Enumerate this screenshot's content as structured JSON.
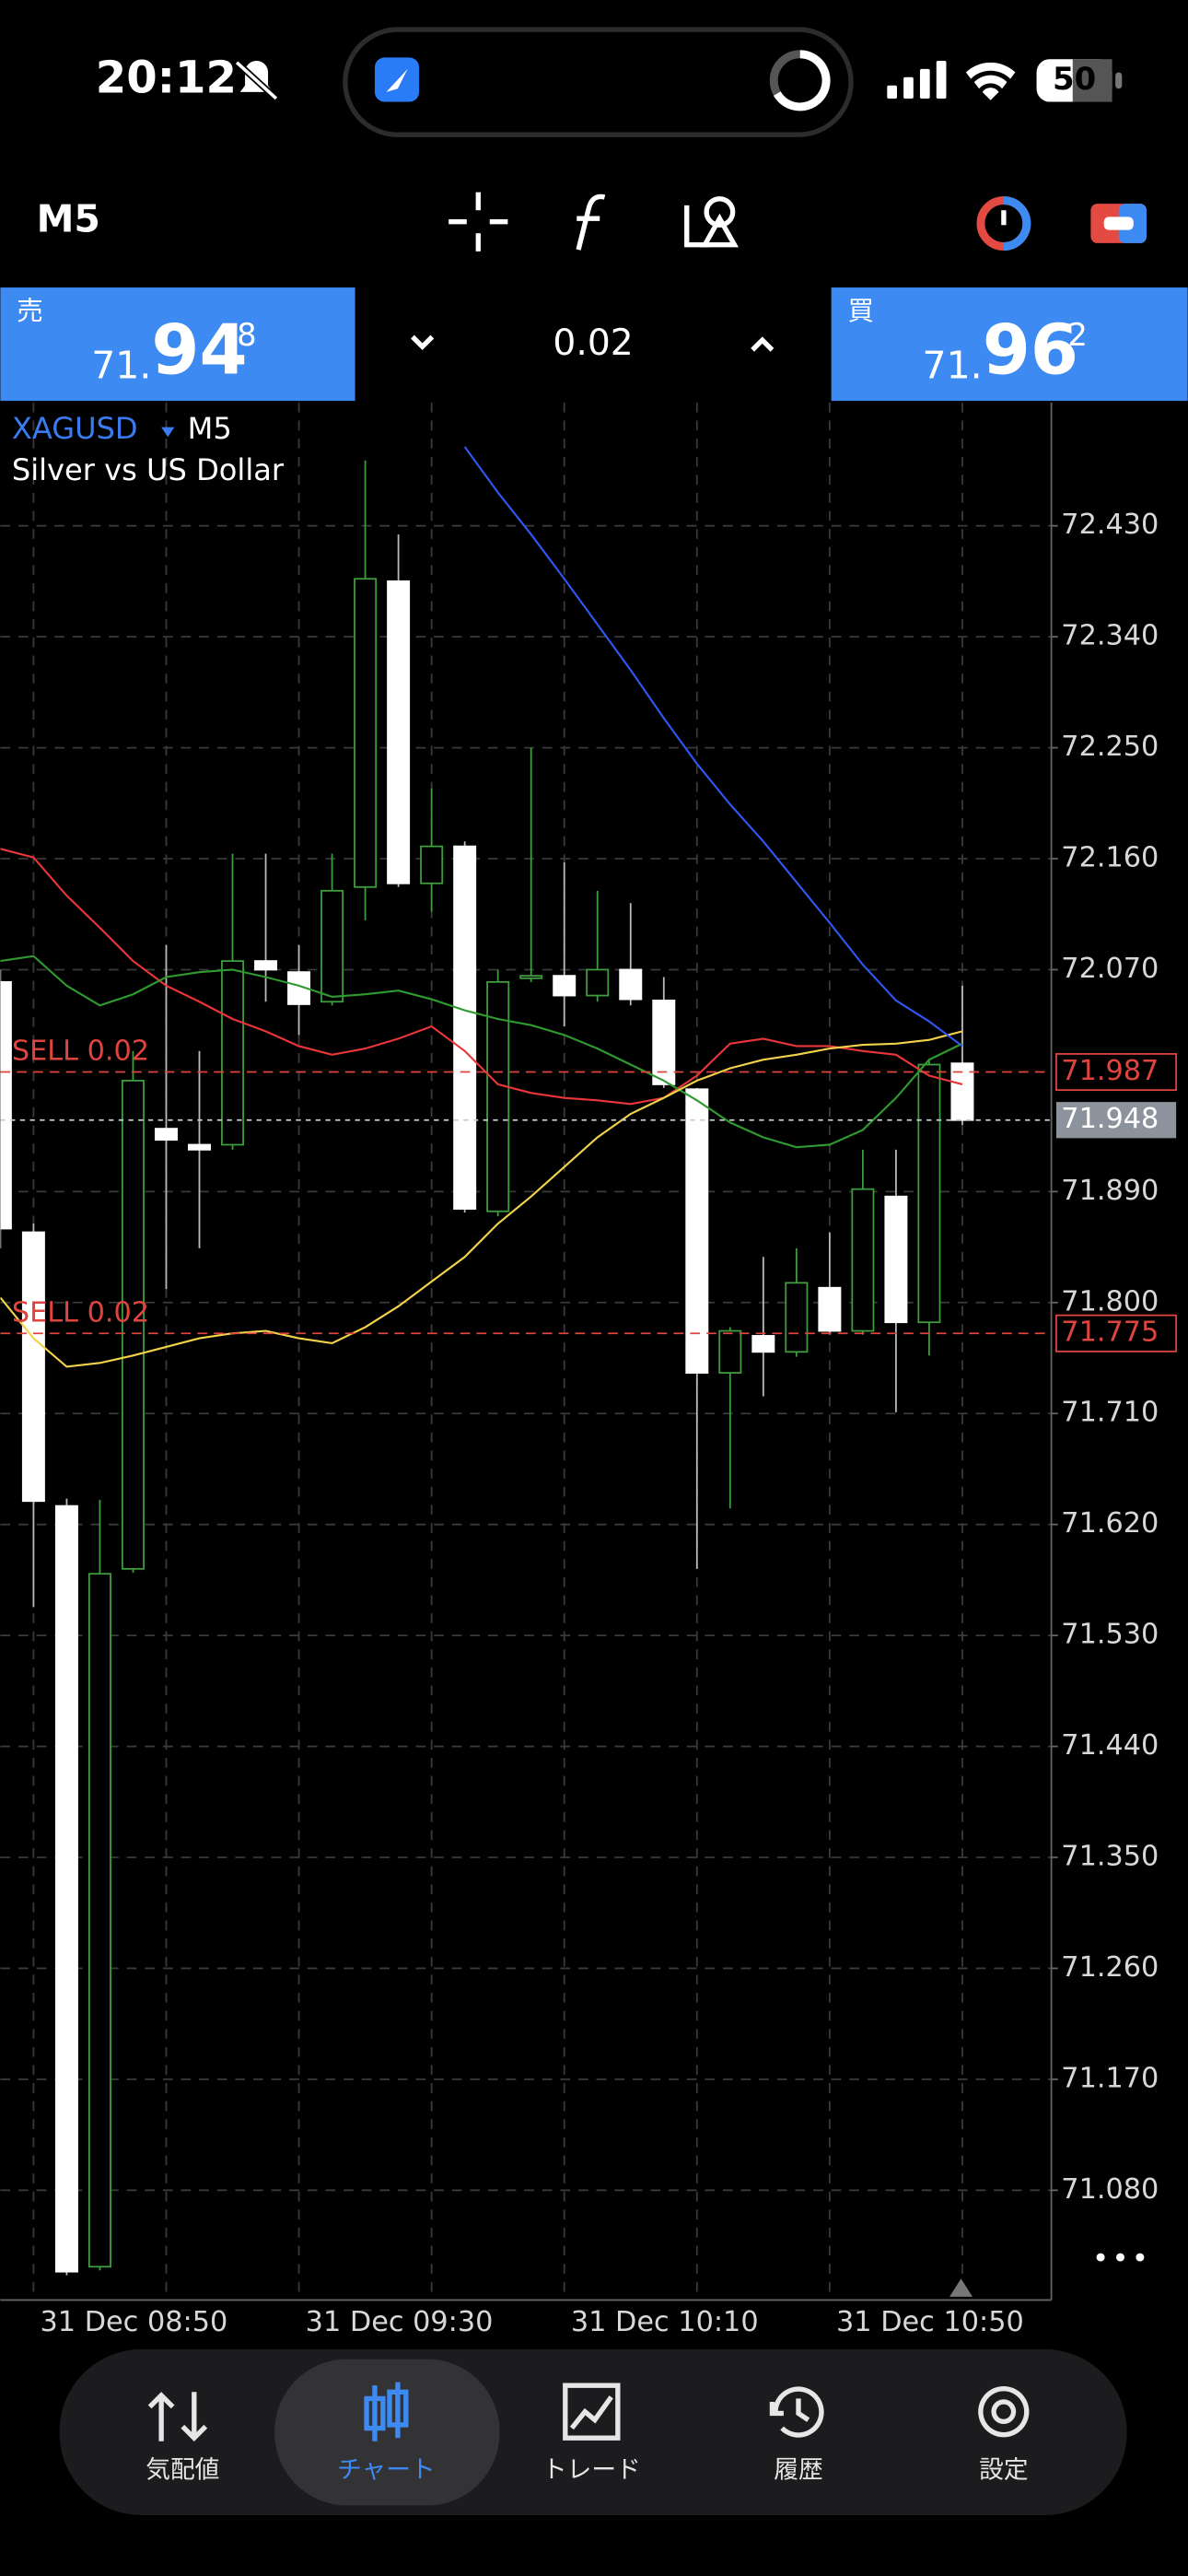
{
  "status_bar": {
    "time": "20:12",
    "battery": "50"
  },
  "toolbar": {
    "timeframe": "M5"
  },
  "trade_panel": {
    "sell": {
      "label": "売",
      "price_prefix": "71.",
      "price_main": "94",
      "price_suffix": "8"
    },
    "volume": "0.02",
    "buy": {
      "label": "買",
      "price_prefix": "71.",
      "price_main": "96",
      "price_suffix": "2"
    }
  },
  "chart_data": {
    "type": "candlestick",
    "symbol": "XAGUSD",
    "timeframe": "M5",
    "description": "Silver vs US Dollar",
    "categories": [
      null,
      "31 Dec 08:50",
      null,
      null,
      null,
      null,
      null,
      null,
      null,
      "31 Dec 09:30",
      null,
      null,
      null,
      null,
      null,
      null,
      null,
      "31 Dec 10:10",
      null,
      null,
      null,
      null,
      null,
      null,
      null,
      "31 Dec 10:50",
      null,
      null,
      null,
      null
    ],
    "open": [
      72.06,
      71.857,
      71.635,
      71.018,
      71.584,
      71.941,
      71.928,
      71.928,
      72.077,
      72.068,
      72.044,
      72.137,
      72.385,
      72.14,
      72.17,
      71.874,
      72.064,
      72.065,
      72.049,
      72.07,
      72.045,
      71.973,
      71.743,
      71.773,
      71.76,
      71.812,
      71.777,
      71.886,
      71.784,
      71.994
    ],
    "high": [
      72.07,
      71.864,
      71.641,
      71.64,
      72.004,
      72.09,
      72.004,
      72.164,
      72.164,
      72.09,
      72.164,
      72.483,
      72.423,
      72.217,
      72.174,
      72.07,
      72.25,
      72.157,
      72.134,
      72.124,
      72.064,
      71.974,
      71.78,
      71.837,
      71.844,
      71.857,
      71.924,
      71.924,
      71.997,
      72.057
    ],
    "low": [
      71.844,
      71.553,
      71.011,
      71.015,
      71.581,
      71.811,
      71.844,
      71.924,
      72.044,
      72.017,
      72.041,
      72.11,
      72.137,
      72.117,
      71.873,
      71.87,
      72.06,
      72.024,
      72.044,
      72.041,
      71.974,
      71.584,
      71.633,
      71.724,
      71.756,
      71.774,
      71.774,
      71.711,
      71.757,
      71.944
    ],
    "close": [
      71.86,
      71.639,
      71.014,
      71.58,
      71.98,
      71.932,
      71.924,
      72.077,
      72.07,
      72.042,
      72.134,
      72.387,
      72.14,
      72.17,
      71.876,
      72.06,
      72.065,
      72.049,
      72.07,
      72.046,
      71.977,
      71.743,
      71.777,
      71.76,
      71.816,
      71.777,
      71.892,
      71.784,
      71.993,
      71.948
    ],
    "bull_color": "#3f9d3f",
    "bear_color": "#ffffff",
    "series": [
      {
        "color": "#e8363a",
        "values": [
          72.168,
          72.161,
          72.13,
          72.104,
          72.077,
          72.057,
          72.044,
          72.03,
          72.02,
          72.008,
          72.001,
          72.006,
          72.014,
          72.024,
          72.004,
          71.977,
          71.97,
          71.966,
          71.964,
          71.961,
          71.966,
          71.984,
          72.01,
          72.014,
          72.008,
          72.008,
          72.004,
          72.001,
          71.984,
          71.977
        ]
      },
      {
        "color": "#2f9a2f",
        "values": [
          72.077,
          72.081,
          72.057,
          72.041,
          72.05,
          72.064,
          72.068,
          72.07,
          72.064,
          72.057,
          72.048,
          72.05,
          72.053,
          72.046,
          72.037,
          72.03,
          72.025,
          72.017,
          72.006,
          71.993,
          71.98,
          71.964,
          71.946,
          71.934,
          71.926,
          71.928,
          71.94,
          71.966,
          71.997,
          72.01
        ]
      },
      {
        "color": "#f2d24a",
        "values": [
          71.804,
          71.771,
          71.748,
          71.751,
          71.757,
          71.764,
          71.771,
          71.775,
          71.777,
          71.771,
          71.767,
          71.78,
          71.797,
          71.817,
          71.837,
          71.864,
          71.886,
          71.91,
          71.934,
          71.953,
          71.966,
          71.98,
          71.99,
          71.997,
          72.001,
          72.006,
          72.009,
          72.01,
          72.013,
          72.02
        ]
      },
      {
        "color": "#3057f0",
        "values": [
          null,
          null,
          null,
          null,
          null,
          null,
          null,
          null,
          null,
          null,
          null,
          null,
          null,
          null,
          72.494,
          72.457,
          72.423,
          72.387,
          72.35,
          72.313,
          72.274,
          72.237,
          72.204,
          72.174,
          72.141,
          72.108,
          72.074,
          72.045,
          72.028,
          72.008
        ]
      }
    ],
    "orders": [
      {
        "label": "SELL 0.02",
        "value": 71.987,
        "color": "#e0443e"
      },
      {
        "label": "SELL 0.02",
        "value": 71.775,
        "color": "#e0443e"
      }
    ],
    "current_price": {
      "value": 71.948,
      "color": "#c8ccd4"
    },
    "ylim": [
      70.991,
      72.53
    ],
    "yticks": [
      {
        "value": 72.43,
        "label": "72.430"
      },
      {
        "value": 72.34,
        "label": "72.340"
      },
      {
        "value": 72.25,
        "label": "72.250"
      },
      {
        "value": 72.16,
        "label": "72.160"
      },
      {
        "value": 72.07,
        "label": "72.070"
      },
      {
        "value": 71.89,
        "label": "71.890"
      },
      {
        "value": 71.8,
        "label": "71.800"
      },
      {
        "value": 71.71,
        "label": "71.710"
      },
      {
        "value": 71.62,
        "label": "71.620"
      },
      {
        "value": 71.53,
        "label": "71.530"
      },
      {
        "value": 71.44,
        "label": "71.440"
      },
      {
        "value": 71.35,
        "label": "71.350"
      },
      {
        "value": 71.26,
        "label": "71.260"
      },
      {
        "value": 71.17,
        "label": "71.170"
      },
      {
        "value": 71.08,
        "label": "71.080"
      }
    ],
    "grid": true
  },
  "nav": {
    "items": [
      "気配値",
      "チャート",
      "トレード",
      "履歴",
      "設定"
    ],
    "active": 1
  }
}
